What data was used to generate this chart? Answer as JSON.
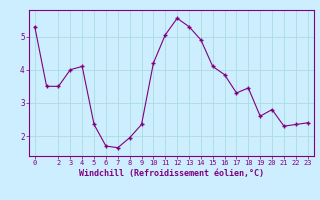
{
  "x": [
    0,
    1,
    2,
    3,
    4,
    5,
    6,
    7,
    8,
    9,
    10,
    11,
    12,
    13,
    14,
    15,
    16,
    17,
    18,
    19,
    20,
    21,
    22,
    23
  ],
  "y": [
    5.3,
    3.5,
    3.5,
    4.0,
    4.1,
    2.35,
    1.7,
    1.65,
    1.95,
    2.35,
    4.2,
    5.05,
    5.55,
    5.3,
    4.9,
    4.1,
    3.85,
    3.3,
    3.45,
    2.6,
    2.8,
    2.3,
    2.35,
    2.4
  ],
  "line_color": "#800080",
  "marker": "+",
  "marker_size": 3,
  "marker_linewidth": 1.0,
  "bg_color": "#cceeff",
  "grid_color": "#aadddd",
  "xlabel": "Windchill (Refroidissement éolien,°C)",
  "xlabel_color": "#800080",
  "tick_color": "#800080",
  "spine_color": "#800080",
  "ylim": [
    1.4,
    5.8
  ],
  "xlim": [
    -0.5,
    23.5
  ],
  "yticks": [
    2,
    3,
    4,
    5
  ],
  "xticks": [
    0,
    2,
    3,
    4,
    5,
    6,
    7,
    8,
    9,
    10,
    11,
    12,
    13,
    14,
    15,
    16,
    17,
    18,
    19,
    20,
    21,
    22,
    23
  ],
  "xlabel_fontsize": 6.0,
  "tick_fontsize": 5.0,
  "ytick_fontsize": 5.5
}
